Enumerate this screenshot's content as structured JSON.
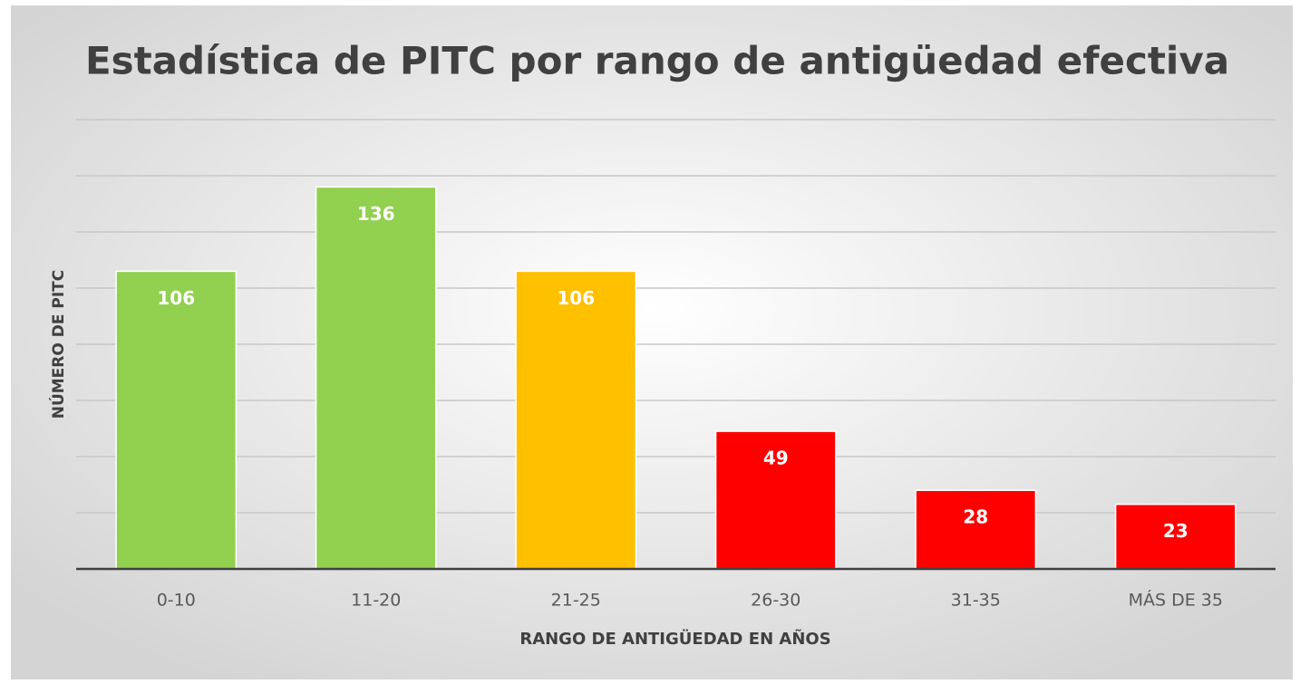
{
  "chart_data": {
    "type": "bar",
    "title": "Estadística de PITC por rango de antigüedad efectiva",
    "x_label": "RANGO DE ANTIGÜEDAD EN AÑOS",
    "y_label": "NÚMERO DE PITC",
    "categories": [
      "0-10",
      "11-20",
      "21-25",
      "26-30",
      "31-35",
      "MÁS DE 35"
    ],
    "values": [
      106,
      136,
      106,
      49,
      28,
      23
    ],
    "colors": [
      "#92d050",
      "#92d050",
      "#ffc000",
      "#ff0000",
      "#ff0000",
      "#ff0000"
    ],
    "ylim": [
      0,
      160
    ],
    "yticks": [
      0,
      20,
      40,
      60,
      80,
      100,
      120,
      140,
      160
    ],
    "grid": true
  }
}
